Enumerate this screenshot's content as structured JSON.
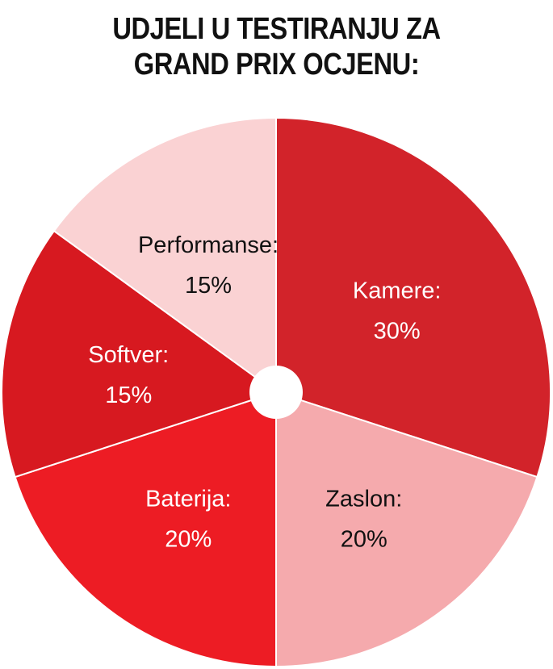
{
  "chart_data": {
    "type": "pie",
    "title_lines": [
      "UDJELI U TESTIRANJU ZA",
      "GRAND PRIX OCJENU:"
    ],
    "slices": [
      {
        "label": "Kamere:",
        "value": 30,
        "display": "30%",
        "color": "#d2232a",
        "text_color": "#ffffff"
      },
      {
        "label": "Zaslon:",
        "value": 20,
        "display": "20%",
        "color": "#f5aaad",
        "text_color": "#111111"
      },
      {
        "label": "Baterija:",
        "value": 20,
        "display": "20%",
        "color": "#ed1c24",
        "text_color": "#ffffff"
      },
      {
        "label": "Softver:",
        "value": 15,
        "display": "15%",
        "color": "#d71920",
        "text_color": "#ffffff"
      },
      {
        "label": "Performanse:",
        "value": 15,
        "display": "15%",
        "color": "#fad2d3",
        "text_color": "#111111"
      }
    ]
  }
}
